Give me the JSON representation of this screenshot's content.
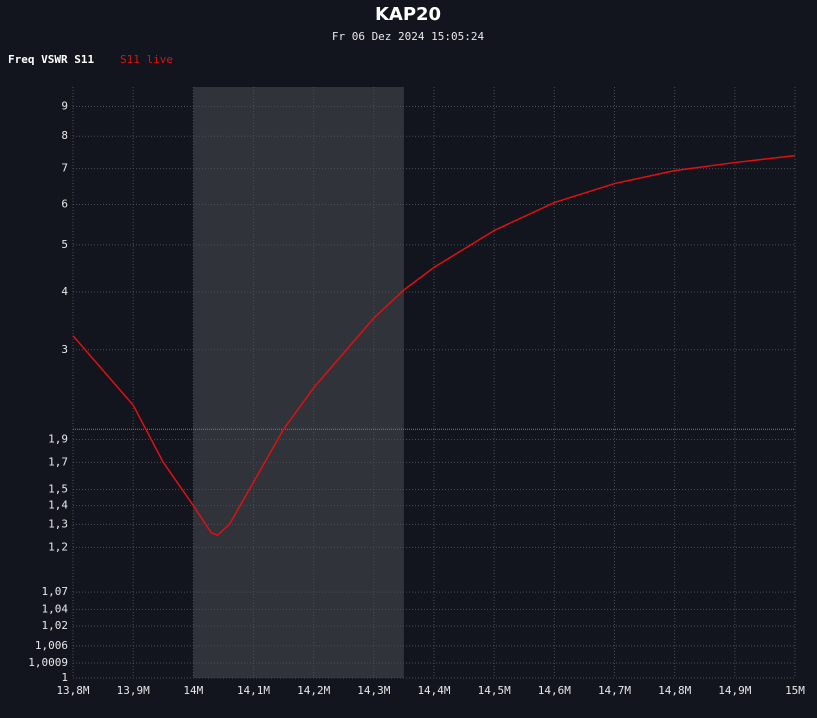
{
  "chart_data": {
    "type": "line",
    "title": "KAP20",
    "subtitle": "Fr 06 Dez 2024 15:05:24",
    "legend_title": "Freq VSWR S11",
    "x": [
      13.8,
      13.9,
      13.95,
      14.0,
      14.03,
      14.04,
      14.06,
      14.1,
      14.15,
      14.2,
      14.3,
      14.35,
      14.4,
      14.5,
      14.6,
      14.7,
      14.8,
      14.9,
      15.0
    ],
    "series": [
      {
        "name": "S11 live",
        "color": "#e01010",
        "values": [
          3.22,
          2.26,
          1.7,
          1.4,
          1.26,
          1.25,
          1.3,
          1.55,
          2.0,
          2.47,
          3.52,
          4.04,
          4.5,
          5.34,
          6.05,
          6.57,
          6.94,
          7.18,
          7.39
        ]
      }
    ],
    "xlim": [
      13.8,
      15.0
    ],
    "xticks": [
      {
        "value": 13.8,
        "label": "13,8M"
      },
      {
        "value": 13.9,
        "label": "13,9M"
      },
      {
        "value": 14.0,
        "label": "14M"
      },
      {
        "value": 14.1,
        "label": "14,1M"
      },
      {
        "value": 14.2,
        "label": "14,2M"
      },
      {
        "value": 14.3,
        "label": "14,3M"
      },
      {
        "value": 14.4,
        "label": "14,4M"
      },
      {
        "value": 14.5,
        "label": "14,5M"
      },
      {
        "value": 14.6,
        "label": "14,6M"
      },
      {
        "value": 14.7,
        "label": "14,7M"
      },
      {
        "value": 14.8,
        "label": "14,8M"
      },
      {
        "value": 14.9,
        "label": "14,9M"
      },
      {
        "value": 15.0,
        "label": "15M"
      }
    ],
    "ylim": [
      1,
      9.7
    ],
    "yticks": [
      1,
      {
        "value": 1.0009,
        "label": "1,0009"
      },
      {
        "value": 1.006,
        "label": "1,006"
      },
      {
        "value": 1.02,
        "label": "1,02"
      },
      {
        "value": 1.04,
        "label": "1,04"
      },
      {
        "value": 1.07,
        "label": "1,07"
      },
      {
        "value": 1.2,
        "label": "1,2"
      },
      {
        "value": 1.3,
        "label": "1,3"
      },
      {
        "value": 1.4,
        "label": "1,4"
      },
      {
        "value": 1.5,
        "label": "1,5"
      },
      {
        "value": 1.7,
        "label": "1,7"
      },
      {
        "value": 1.9,
        "label": "1,9"
      },
      3,
      4,
      5,
      6,
      7,
      8,
      9
    ],
    "highlight_band": [
      14.0,
      14.35
    ],
    "reference_line": 2,
    "grid": true
  }
}
